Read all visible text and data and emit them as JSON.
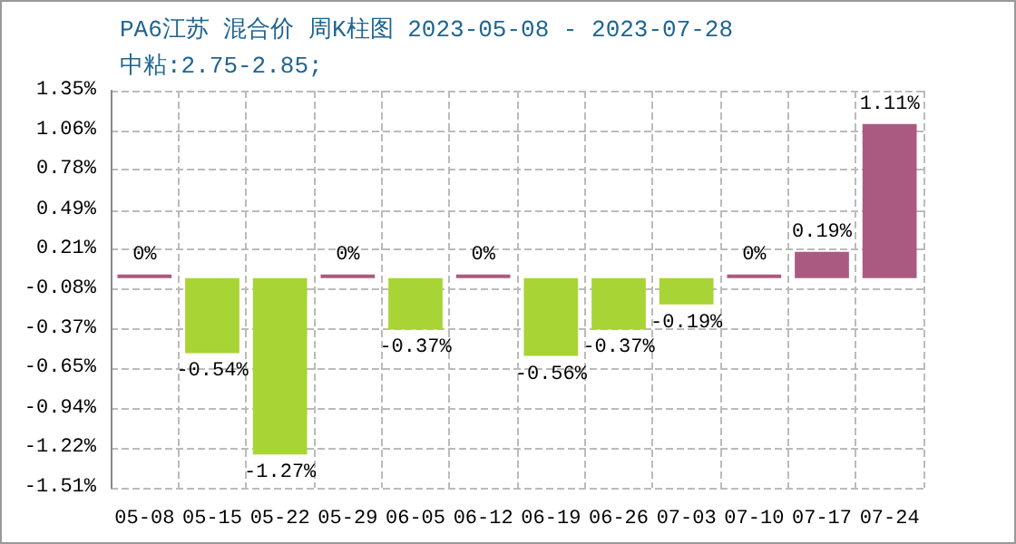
{
  "chart_data": {
    "type": "bar",
    "title": "PA6江苏 混合价 周K柱图 2023-05-08 - 2023-07-28",
    "subtitle": "中粘:2.75-2.85;",
    "categories": [
      "05-08",
      "05-15",
      "05-22",
      "05-29",
      "06-05",
      "06-12",
      "06-19",
      "06-26",
      "07-03",
      "07-10",
      "07-17",
      "07-24"
    ],
    "values": [
      0,
      -0.54,
      -1.27,
      0,
      -0.37,
      0,
      -0.56,
      -0.37,
      -0.19,
      0,
      0.19,
      1.11
    ],
    "value_labels": [
      "0%",
      "-0.54%",
      "-1.27%",
      "0%",
      "-0.37%",
      "0%",
      "-0.56%",
      "-0.37%",
      "-0.19%",
      "0%",
      "0.19%",
      "1.11%"
    ],
    "colors": [
      "#aa5a80",
      "#a8d435",
      "#a8d435",
      "#aa5a80",
      "#a8d435",
      "#aa5a80",
      "#a8d435",
      "#a8d435",
      "#a8d435",
      "#aa5a80",
      "#aa5a80",
      "#aa5a80"
    ],
    "ylim": [
      -1.51,
      1.35
    ],
    "yticks": [
      {
        "value": -1.51,
        "label": "-1.51%"
      },
      {
        "value": -1.22,
        "label": "-1.22%"
      },
      {
        "value": -0.94,
        "label": "-0.94%"
      },
      {
        "value": -0.65,
        "label": "-0.65%"
      },
      {
        "value": -0.37,
        "label": "-0.37%"
      },
      {
        "value": -0.08,
        "label": "-0.08%"
      },
      {
        "value": 0.21,
        "label": "0.21%"
      },
      {
        "value": 0.49,
        "label": "0.49%"
      },
      {
        "value": 0.78,
        "label": "0.78%"
      },
      {
        "value": 1.06,
        "label": "1.06%"
      },
      {
        "value": 1.35,
        "label": "1.35%"
      }
    ],
    "grid": true
  }
}
